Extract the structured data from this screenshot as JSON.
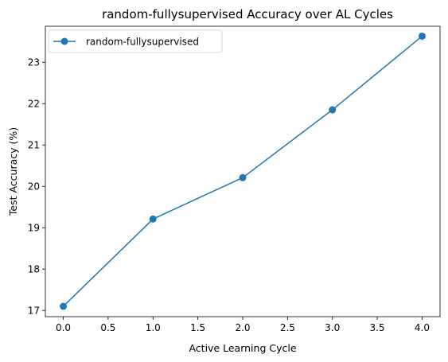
{
  "chart_data": {
    "type": "line",
    "title": "random-fullysupervised Accuracy over AL Cycles",
    "xlabel": "Active Learning Cycle",
    "ylabel": "Test Accuracy (%)",
    "xlim": [
      -0.2,
      4.2
    ],
    "ylim": [
      16.85,
      23.87
    ],
    "xticks": [
      0.0,
      0.5,
      1.0,
      1.5,
      2.0,
      2.5,
      3.0,
      3.5,
      4.0
    ],
    "xtick_labels": [
      "0.0",
      "0.5",
      "1.0",
      "1.5",
      "2.0",
      "2.5",
      "3.0",
      "3.5",
      "4.0"
    ],
    "yticks": [
      17,
      18,
      19,
      20,
      21,
      22,
      23
    ],
    "ytick_labels": [
      "17",
      "18",
      "19",
      "20",
      "21",
      "22",
      "23"
    ],
    "grid": false,
    "legend_position": "top-left",
    "series": [
      {
        "name": "random-fullysupervised",
        "color": "#1f77b4",
        "marker": "circle",
        "x": [
          0,
          1,
          2,
          3,
          4
        ],
        "values": [
          17.1,
          19.21,
          20.21,
          21.85,
          23.63
        ]
      }
    ]
  }
}
